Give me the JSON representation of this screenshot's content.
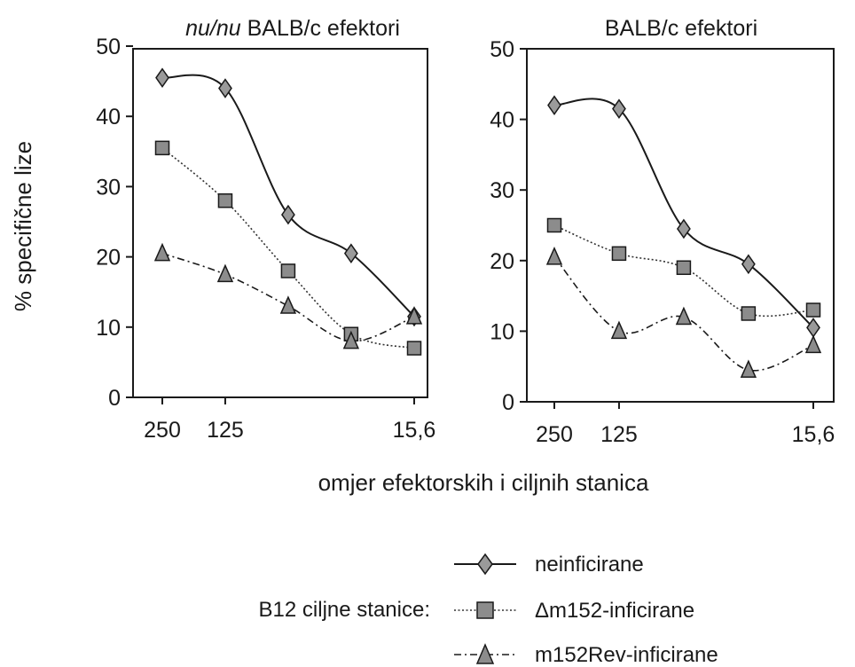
{
  "chart_data": {
    "type": "line",
    "ylabel": "% specifične lize",
    "xlabel": "omjer efektorskih i ciljnih stanica",
    "ylim": [
      0,
      50
    ],
    "yticks": [
      "0",
      "10",
      "20",
      "30",
      "40",
      "50"
    ],
    "xticks": [
      "250",
      "125",
      "15,6"
    ],
    "x": [
      250,
      125,
      62.5,
      31.25,
      15.6
    ],
    "x_scale": "log",
    "legend_title": "B12 ciljne stanice:",
    "legend_placement": "bottom",
    "legend": [
      {
        "name": "neinficirane",
        "marker": "diamond",
        "line": "solid"
      },
      {
        "name": "Δm152-inficirane",
        "marker": "square",
        "line": "dotted"
      },
      {
        "name": "m152Rev-inficirane",
        "marker": "triangle",
        "line": "dash-dot"
      }
    ],
    "panels": [
      {
        "title_italic": "nu/nu",
        "title_rest": " BALB/c efektori",
        "series": [
          {
            "name": "neinficirane",
            "values": [
              45.5,
              44,
              26,
              20.5,
              11.5
            ]
          },
          {
            "name": "Δm152-inficirane",
            "values": [
              35.5,
              28,
              18,
              9,
              7
            ]
          },
          {
            "name": "m152Rev-inficirane",
            "values": [
              20.5,
              17.5,
              13,
              8,
              11.5
            ]
          }
        ]
      },
      {
        "title_italic": "",
        "title_rest": "BALB/c efektori",
        "series": [
          {
            "name": "neinficirane",
            "values": [
              42,
              41.5,
              24.5,
              19.5,
              10.5
            ]
          },
          {
            "name": "Δm152-inficirane",
            "values": [
              25,
              21,
              19,
              12.5,
              13
            ]
          },
          {
            "name": "m152Rev-inficirane",
            "values": [
              20.5,
              10,
              12,
              4.5,
              8
            ]
          }
        ]
      }
    ]
  }
}
